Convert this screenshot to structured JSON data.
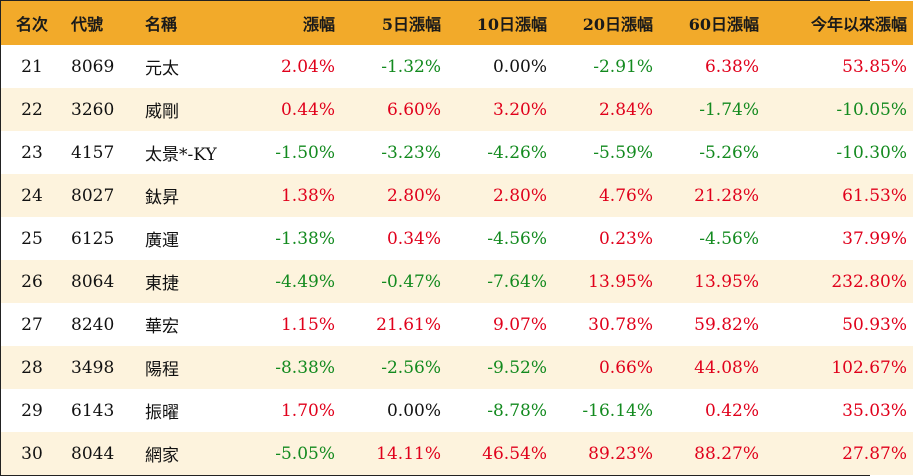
{
  "headers": [
    "名次",
    "代號",
    "名稱",
    "漲幅",
    "5日漲幅",
    "10日漲幅",
    "20日漲幅",
    "60日漲幅",
    "今年以來漲幅"
  ],
  "colors": {
    "header_bg": "#f2aa2a",
    "stripe_bg": "#fdf3dd",
    "positive": "#e0001b",
    "negative": "#138a1f",
    "neutral": "#111111"
  },
  "rows": [
    {
      "rank": "21",
      "code": "8069",
      "name": "元太",
      "vals": [
        "2.04%",
        "-1.32%",
        "0.00%",
        "-2.91%",
        "6.38%",
        "53.85%"
      ]
    },
    {
      "rank": "22",
      "code": "3260",
      "name": "威剛",
      "vals": [
        "0.44%",
        "6.60%",
        "3.20%",
        "2.84%",
        "-1.74%",
        "-10.05%"
      ]
    },
    {
      "rank": "23",
      "code": "4157",
      "name": "太景*-KY",
      "vals": [
        "-1.50%",
        "-3.23%",
        "-4.26%",
        "-5.59%",
        "-5.26%",
        "-10.30%"
      ]
    },
    {
      "rank": "24",
      "code": "8027",
      "name": "鈦昇",
      "vals": [
        "1.38%",
        "2.80%",
        "2.80%",
        "4.76%",
        "21.28%",
        "61.53%"
      ]
    },
    {
      "rank": "25",
      "code": "6125",
      "name": "廣運",
      "vals": [
        "-1.38%",
        "0.34%",
        "-4.56%",
        "0.23%",
        "-4.56%",
        "37.99%"
      ]
    },
    {
      "rank": "26",
      "code": "8064",
      "name": "東捷",
      "vals": [
        "-4.49%",
        "-0.47%",
        "-7.64%",
        "13.95%",
        "13.95%",
        "232.80%"
      ]
    },
    {
      "rank": "27",
      "code": "8240",
      "name": "華宏",
      "vals": [
        "1.15%",
        "21.61%",
        "9.07%",
        "30.78%",
        "59.82%",
        "50.93%"
      ]
    },
    {
      "rank": "28",
      "code": "3498",
      "name": "陽程",
      "vals": [
        "-8.38%",
        "-2.56%",
        "-9.52%",
        "0.66%",
        "44.08%",
        "102.67%"
      ]
    },
    {
      "rank": "29",
      "code": "6143",
      "name": "振曜",
      "vals": [
        "1.70%",
        "0.00%",
        "-8.78%",
        "-16.14%",
        "0.42%",
        "35.03%"
      ]
    },
    {
      "rank": "30",
      "code": "8044",
      "name": "網家",
      "vals": [
        "-5.05%",
        "14.11%",
        "46.54%",
        "89.23%",
        "88.27%",
        "27.87%"
      ]
    }
  ]
}
